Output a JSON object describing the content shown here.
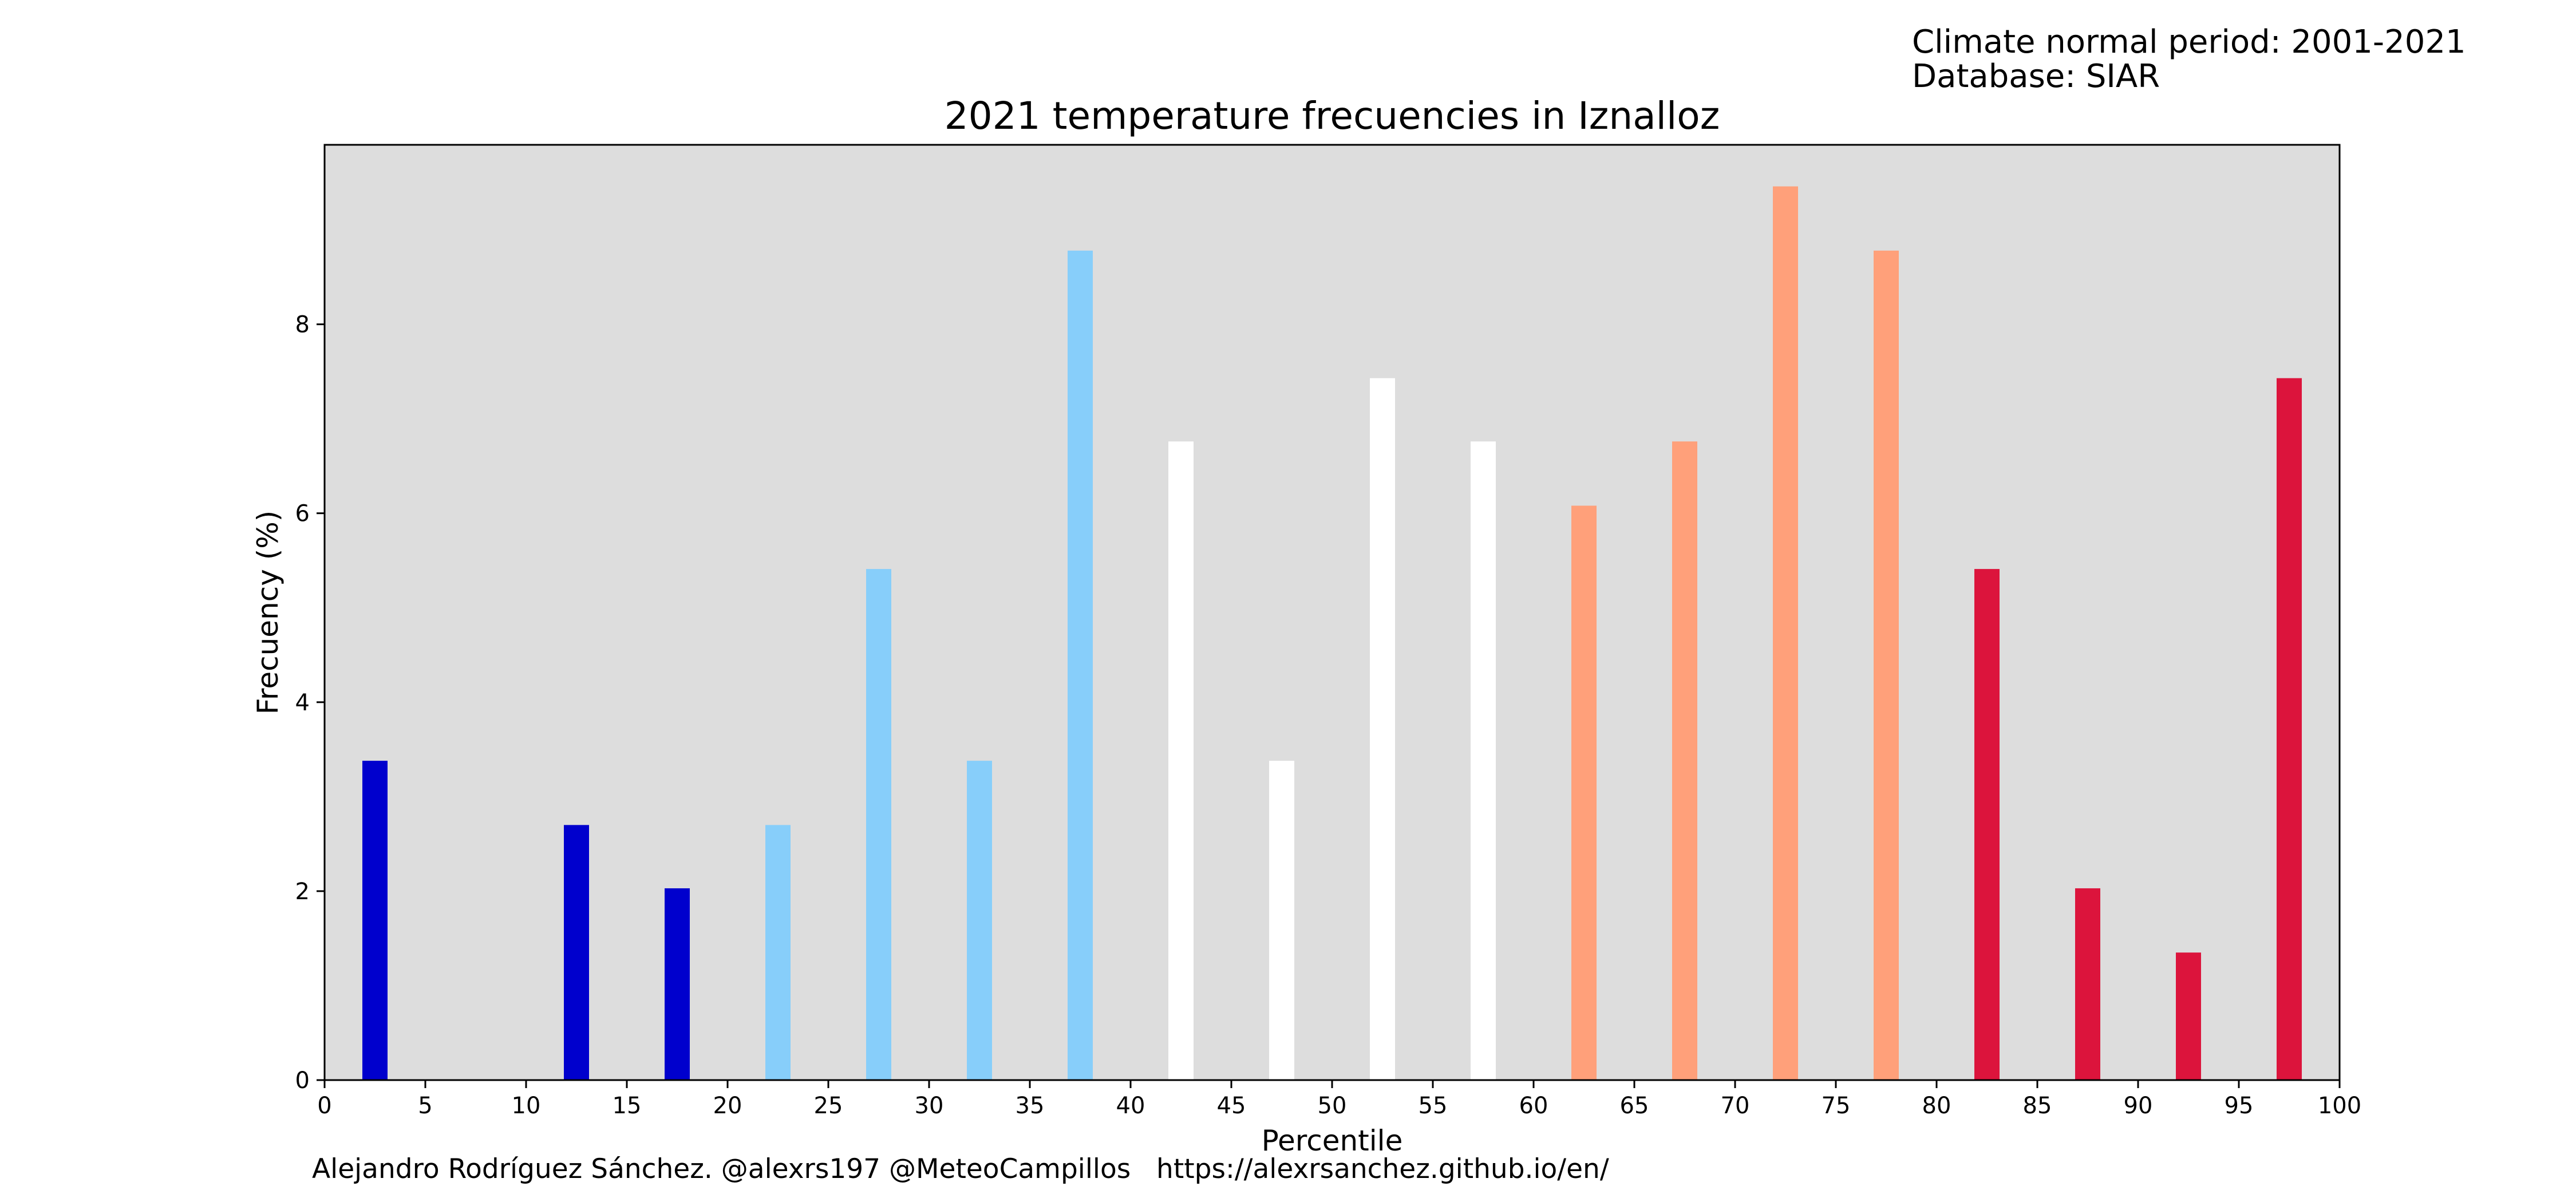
{
  "header": {
    "climate_period": "Climate normal period: 2001-2021",
    "database": "Database: SIAR"
  },
  "footer": {
    "credits": "Alejandro Rodríguez Sánchez. @alexrs197 @MeteoCampillos   https://alexrsanchez.github.io/en/"
  },
  "chart_data": {
    "type": "bar",
    "title": "2021 temperature frecuencies in Iznalloz",
    "xlabel": "Percentile",
    "ylabel": "Frecuency (%)",
    "xlim": [
      0,
      100
    ],
    "ylim": [
      0,
      9.9
    ],
    "xticks": [
      0,
      5,
      10,
      15,
      20,
      25,
      30,
      35,
      40,
      45,
      50,
      55,
      60,
      65,
      70,
      75,
      80,
      85,
      90,
      95,
      100
    ],
    "yticks": [
      0,
      2,
      4,
      6,
      8
    ],
    "grid": false,
    "bar_width": 1.25,
    "x": [
      2.5,
      7.5,
      12.5,
      17.5,
      22.5,
      27.5,
      32.5,
      37.5,
      42.5,
      47.5,
      52.5,
      57.5,
      62.5,
      67.5,
      72.5,
      77.5,
      82.5,
      87.5,
      92.5,
      97.5
    ],
    "values": [
      3.38,
      0,
      2.7,
      2.03,
      2.7,
      5.41,
      3.38,
      8.78,
      6.76,
      3.38,
      7.43,
      6.76,
      6.08,
      6.76,
      9.46,
      8.78,
      5.41,
      2.03,
      1.35,
      7.43
    ],
    "colors": [
      "#0000cd",
      "#0000cd",
      "#0000cd",
      "#0000cd",
      "#87cefa",
      "#87cefa",
      "#87cefa",
      "#87cefa",
      "#ffffff",
      "#ffffff",
      "#ffffff",
      "#ffffff",
      "#ffa07a",
      "#ffa07a",
      "#ffa07a",
      "#ffa07a",
      "#dc143c",
      "#dc143c",
      "#dc143c",
      "#dc143c"
    ],
    "background": "#dddddd"
  }
}
